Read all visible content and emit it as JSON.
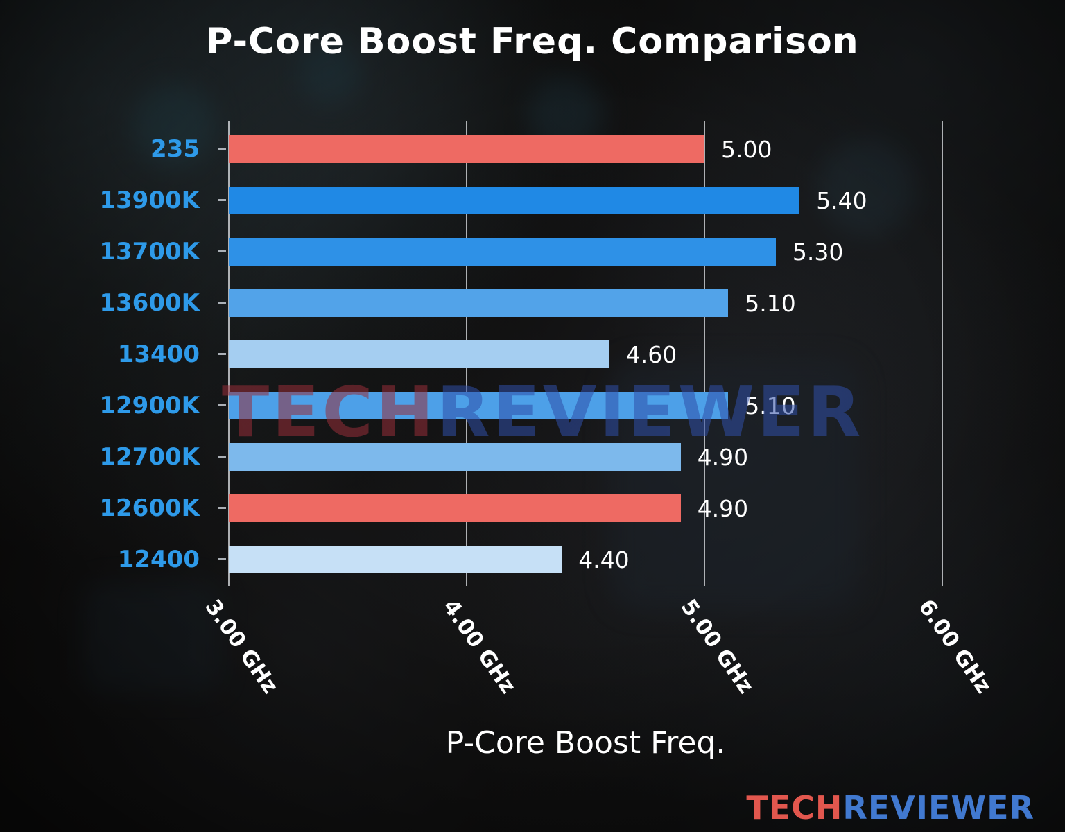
{
  "chart_data": {
    "type": "bar",
    "orientation": "horizontal",
    "title": "P-Core Boost Freq. Comparison",
    "xlabel": "P-Core Boost Freq.",
    "categories": [
      "235",
      "13900K",
      "13700K",
      "13600K",
      "13400",
      "12900K",
      "12700K",
      "12600K",
      "12400"
    ],
    "values": [
      5.0,
      5.4,
      5.3,
      5.1,
      4.6,
      5.1,
      4.9,
      4.9,
      4.4
    ],
    "value_labels": [
      "5.00",
      "5.40",
      "5.30",
      "5.10",
      "4.60",
      "5.10",
      "4.90",
      "4.90",
      "4.40"
    ],
    "unit": "GHz",
    "bar_colors": [
      "#ee6a63",
      "#2089e5",
      "#2e91e7",
      "#52a3e9",
      "#a5cef1",
      "#4da0e8",
      "#7db9ec",
      "#ee6a63",
      "#c6e0f6"
    ],
    "category_label_color": "#2e9ae9",
    "value_label_color": "#ffffff",
    "xlim": [
      3.0,
      6.0
    ],
    "x_tick_values": [
      3,
      4,
      5,
      6
    ],
    "x_ticks": [
      "3.00 GHz",
      "4.00 GHz",
      "5.00 GHz",
      "6.00 GHz"
    ],
    "grid": true,
    "legend": "none"
  },
  "watermark": {
    "part1": "TECH",
    "part2": "REVIEWER"
  },
  "logo": {
    "part1": "TECH",
    "part2": "REVIEWER"
  }
}
